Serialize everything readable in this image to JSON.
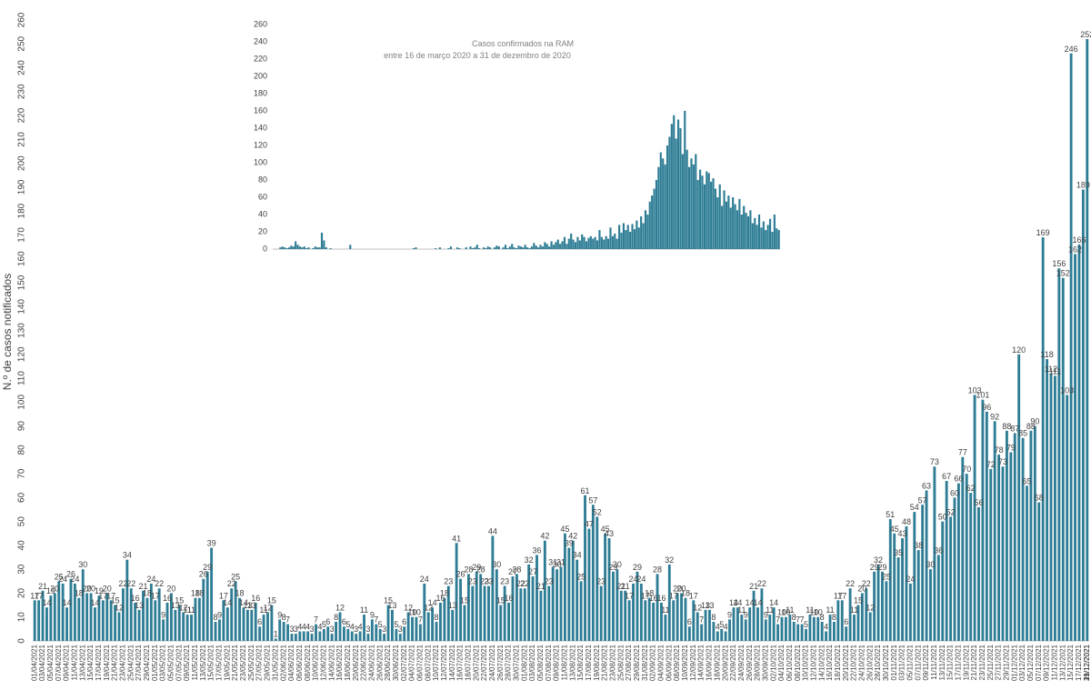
{
  "colors": {
    "bar": "#2e7d95",
    "axis": "#bfbfbf",
    "text": "#404040",
    "grid": "#d9d9d9"
  },
  "chart_data": [
    {
      "type": "bar",
      "title": "",
      "xlabel": "",
      "ylabel": "N.º de casos notificados",
      "ylim": [
        0,
        260
      ],
      "y_ticks": [
        0,
        10,
        20,
        30,
        40,
        50,
        60,
        70,
        80,
        90,
        100,
        110,
        120,
        130,
        140,
        150,
        160,
        170,
        180,
        190,
        200,
        210,
        220,
        230,
        240,
        250,
        260
      ],
      "grid": false,
      "series": [
        {
          "x_start": "01/04/2021",
          "x_end": "31/12/2021",
          "values": [
            17,
            17,
            21,
            14,
            19,
            20,
            25,
            24,
            14,
            26,
            24,
            18,
            30,
            20,
            20,
            14,
            19,
            17,
            20,
            17,
            15,
            12,
            22,
            34,
            22,
            16,
            13,
            21,
            18,
            24,
            17,
            22,
            9,
            16,
            20,
            13,
            15,
            12,
            11,
            11,
            18,
            18,
            26,
            29,
            39,
            8,
            9,
            17,
            14,
            22,
            25,
            18,
            14,
            13,
            13,
            16,
            6,
            11,
            12,
            15,
            1,
            9,
            8,
            7,
            3,
            3,
            4,
            4,
            4,
            3,
            7,
            4,
            5,
            6,
            3,
            8,
            12,
            6,
            5,
            4,
            3,
            4,
            11,
            3,
            9,
            7,
            5,
            3,
            15,
            13,
            5,
            3,
            6,
            12,
            10,
            10,
            7,
            24,
            12,
            14,
            8,
            16,
            18,
            23,
            13,
            41,
            26,
            15,
            28,
            23,
            29,
            28,
            23,
            23,
            44,
            30,
            15,
            23,
            16,
            27,
            28,
            22,
            22,
            32,
            27,
            36,
            21,
            42,
            23,
            31,
            30,
            31,
            45,
            39,
            42,
            34,
            25,
            61,
            47,
            57,
            52,
            23,
            45,
            43,
            29,
            30,
            21,
            21,
            17,
            24,
            29,
            24,
            17,
            18,
            16,
            28,
            16,
            11,
            32,
            17,
            20,
            20,
            18,
            6,
            17,
            12,
            7,
            13,
            13,
            8,
            4,
            5,
            4,
            9,
            14,
            14,
            11,
            9,
            14,
            21,
            14,
            22,
            9,
            11,
            14,
            7,
            10,
            10,
            11,
            8,
            7,
            7,
            5,
            11,
            10,
            10,
            8,
            4,
            11,
            8,
            17,
            17,
            6,
            22,
            11,
            15,
            20,
            22,
            12,
            29,
            32,
            29,
            25,
            51,
            45,
            35,
            43,
            48,
            24,
            54,
            38,
            57,
            63,
            30,
            73,
            36,
            50,
            67,
            52,
            60,
            66,
            77,
            70,
            62,
            103,
            56,
            101,
            96,
            72,
            92,
            78,
            73,
            88,
            79,
            87,
            120,
            85,
            65,
            88,
            90,
            58,
            169,
            118,
            112,
            111,
            156,
            152,
            103,
            246,
            162,
            166,
            189,
            252
          ]
        }
      ],
      "x_tick_labels": [
        "01/04/2021",
        "03/04/2021",
        "05/04/2021",
        "07/04/2021",
        "09/04/2021",
        "11/04/2021",
        "13/04/2021",
        "15/04/2021",
        "17/04/2021",
        "19/04/2021",
        "21/04/2021",
        "23/04/2021",
        "25/04/2021",
        "27/04/2021",
        "29/04/2021",
        "01/05/2021",
        "03/05/2021",
        "05/05/2021",
        "07/05/2021",
        "09/05/2021",
        "11/05/2021",
        "13/05/2021",
        "15/05/2021",
        "17/05/2021",
        "19/05/2021",
        "21/05/2021",
        "23/05/2021",
        "25/05/2021",
        "27/05/2021",
        "29/05/2021",
        "31/05/2021",
        "02/06/2021",
        "04/06/2021",
        "06/06/2021",
        "08/06/2021",
        "10/06/2021",
        "12/06/2021",
        "14/06/2021",
        "16/06/2021",
        "18/06/2021",
        "20/06/2021",
        "22/06/2021",
        "24/06/2021",
        "26/06/2021",
        "28/06/2021",
        "30/06/2021",
        "02/07/2021",
        "04/07/2021",
        "06/07/2021",
        "08/07/2021",
        "10/07/2021",
        "12/07/2021",
        "14/07/2021",
        "16/07/2021",
        "18/07/2021",
        "20/07/2021",
        "22/07/2021",
        "24/07/2021",
        "26/07/2021",
        "28/07/2021",
        "30/07/2021",
        "01/08/2021",
        "03/08/2021",
        "05/08/2021",
        "07/08/2021",
        "09/08/2021",
        "11/08/2021",
        "13/08/2021",
        "15/08/2021",
        "17/08/2021",
        "19/08/2021",
        "21/08/2021",
        "23/08/2021",
        "25/08/2021",
        "27/08/2021",
        "29/08/2021",
        "31/08/2021",
        "02/09/2021",
        "04/09/2021",
        "06/09/2021",
        "08/09/2021",
        "10/09/2021",
        "12/09/2021",
        "14/09/2021",
        "16/09/2021",
        "18/09/2021",
        "20/09/2021",
        "22/09/2021",
        "24/09/2021",
        "26/09/2021",
        "28/09/2021",
        "30/09/2021",
        "02/10/2021",
        "04/10/2021",
        "06/10/2021",
        "08/10/2021",
        "10/10/2021",
        "12/10/2021",
        "14/10/2021",
        "16/10/2021",
        "18/10/2021",
        "20/10/2021",
        "22/10/2021",
        "24/10/2021",
        "26/10/2021",
        "28/10/2021",
        "30/10/2021",
        "01/11/2021",
        "03/11/2021",
        "05/11/2021",
        "07/11/2021",
        "09/11/2021",
        "11/11/2021",
        "13/11/2021",
        "15/11/2021",
        "17/11/2021",
        "19/11/2021",
        "21/11/2021",
        "23/11/2021",
        "25/11/2021",
        "27/11/2021",
        "29/11/2021",
        "01/12/2021",
        "03/12/2021",
        "05/12/2021",
        "07/12/2021",
        "09/12/2021",
        "11/12/2021",
        "13/12/2021",
        "15/12/2021",
        "17/12/2021",
        "19/12/2021",
        "21/12/2021",
        "31/12/2021"
      ]
    },
    {
      "type": "bar",
      "title": "Casos confirmados na RAM",
      "subtitle": "entre 16 de março 2020 a 31 de dezembro de 2020",
      "ylim": [
        0,
        260
      ],
      "y_ticks": [
        0,
        20,
        40,
        60,
        80,
        100,
        120,
        140,
        160,
        180,
        200,
        220,
        240,
        260
      ],
      "series": [
        {
          "x_start": "16/03/2020",
          "x_end": "31/12/2020",
          "values": [
            0,
            0,
            0,
            2,
            3,
            2,
            1,
            2,
            4,
            3,
            9,
            5,
            3,
            2,
            3,
            1,
            2,
            0,
            1,
            3,
            2,
            2,
            19,
            10,
            2,
            0,
            1,
            0,
            0,
            0,
            0,
            0,
            0,
            0,
            0,
            5,
            0,
            0,
            0,
            0,
            0,
            0,
            0,
            0,
            0,
            0,
            0,
            0,
            0,
            0,
            0,
            0,
            0,
            0,
            0,
            0,
            0,
            0,
            0,
            0,
            0,
            0,
            0,
            0,
            1,
            2,
            0,
            0,
            0,
            0,
            0,
            0,
            0,
            0,
            1,
            0,
            2,
            0,
            0,
            0,
            1,
            3,
            0,
            0,
            2,
            1,
            0,
            0,
            2,
            0,
            3,
            1,
            2,
            5,
            1,
            0,
            2,
            1,
            3,
            2,
            0,
            2,
            4,
            3,
            0,
            2,
            5,
            1,
            3,
            6,
            2,
            1,
            4,
            3,
            2,
            5,
            2,
            1,
            3,
            7,
            4,
            2,
            5,
            3,
            8,
            6,
            3,
            9,
            5,
            8,
            11,
            6,
            9,
            14,
            6,
            12,
            18,
            11,
            8,
            14,
            10,
            17,
            14,
            9,
            13,
            15,
            12,
            14,
            10,
            22,
            14,
            11,
            15,
            12,
            25,
            15,
            18,
            12,
            28,
            19,
            30,
            22,
            28,
            20,
            29,
            23,
            33,
            25,
            38,
            30,
            45,
            40,
            55,
            62,
            70,
            80,
            95,
            112,
            105,
            98,
            120,
            130,
            145,
            155,
            128,
            150,
            140,
            110,
            160,
            115,
            95,
            105,
            98,
            110,
            80,
            92,
            85,
            75,
            90,
            88,
            78,
            82,
            70,
            60,
            75,
            50,
            68,
            55,
            62,
            48,
            60,
            52,
            45,
            58,
            40,
            50,
            42,
            38,
            45,
            30,
            36,
            28,
            40,
            25,
            32,
            22,
            28,
            35,
            20,
            40,
            24,
            22
          ]
        }
      ]
    }
  ]
}
